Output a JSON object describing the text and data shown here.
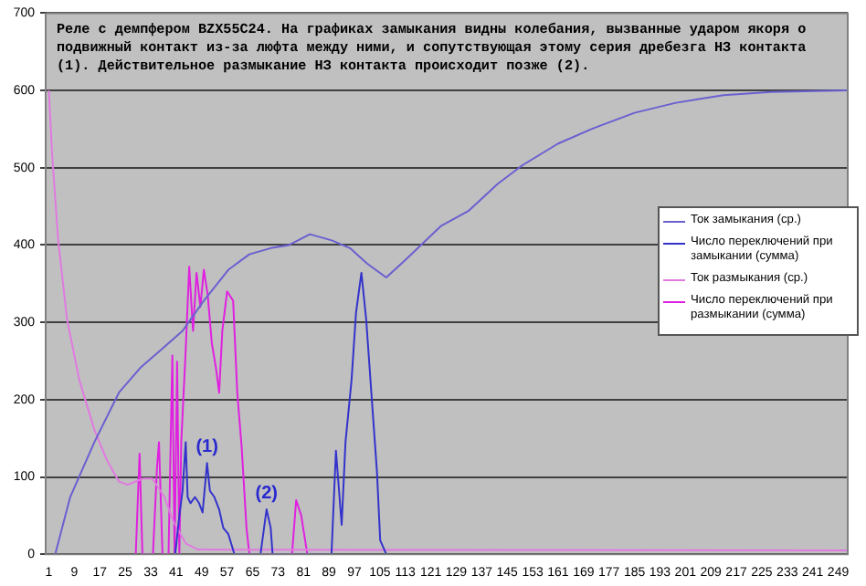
{
  "chart_data": {
    "type": "line",
    "title": "Реле с демпфером BZX55C24. На графиках замыкания видны колебания, вызванные ударом якоря о подвижный контакт из-за люфта между ними, и сопутствующая этому серия дребезга НЗ контакта (1). Действительное размыкание НЗ контакта происходит позже (2).",
    "xlim": [
      0,
      252
    ],
    "xticks": [
      1,
      9,
      17,
      25,
      33,
      41,
      49,
      57,
      65,
      73,
      81,
      89,
      97,
      105,
      113,
      121,
      129,
      137,
      145,
      153,
      161,
      169,
      177,
      185,
      193,
      201,
      209,
      217,
      225,
      233,
      241,
      249
    ],
    "ylim": [
      0,
      700
    ],
    "yticks": [
      0,
      100,
      200,
      300,
      400,
      500,
      600,
      700
    ],
    "grid": "y",
    "legend": "right",
    "marker": "none",
    "line_style": "solid",
    "series": [
      {
        "name": "Ток замыкания (ср.)",
        "color": "#6a5fd0",
        "x": [
          3,
          7.7,
          15.3,
          23,
          29.7,
          36.4,
          43,
          49.7,
          57.4,
          64,
          70.7,
          76.5,
          83,
          89.9,
          95.6,
          101,
          107,
          112.8,
          124.3,
          132.8,
          142,
          149.7,
          160.9,
          172,
          185,
          198,
          213,
          228,
          252
        ],
        "values": [
          0,
          74,
          145,
          209,
          241,
          265,
          289,
          328,
          368,
          388,
          396,
          400,
          414,
          406,
          396,
          376,
          358,
          380,
          425,
          444,
          479,
          503,
          531,
          551,
          571,
          584,
          594,
          598,
          600
        ]
      },
      {
        "name": "Число переключений при замыкании (сумма)",
        "color": "#3333cc",
        "x": [
          40.7,
          42,
          43,
          44,
          44.6,
          45.5,
          46.9,
          48.2,
          49.3,
          50.7,
          51.6,
          53,
          54.5,
          55.8,
          57.4,
          59.3,
          67.5,
          69.4,
          70.7,
          71.3,
          89.8,
          91.2,
          93,
          94.2,
          96.1,
          97.5,
          99.2,
          100.7,
          102.6,
          104.1,
          105.1,
          107
        ],
        "values": [
          0,
          50,
          82,
          145,
          74,
          66,
          74,
          66,
          54,
          118,
          82,
          74,
          58,
          34,
          26,
          0,
          0,
          58,
          34,
          0,
          0,
          134,
          38,
          145,
          225,
          312,
          364,
          304,
          193,
          106,
          18,
          0
        ]
      },
      {
        "name": "Ток размыкания (ср.)",
        "color": "#e07ae0",
        "x": [
          1,
          2,
          3.9,
          6.7,
          10.6,
          15.3,
          19.2,
          23,
          25.8,
          30.6,
          33.5,
          37.3,
          40.2,
          44,
          47.8,
          252
        ],
        "values": [
          600,
          519,
          408,
          304,
          225,
          161,
          122,
          94,
          90,
          98,
          98,
          74,
          42,
          14,
          6,
          5
        ]
      },
      {
        "name": "Число переключений при размыкании (сумма)",
        "color": "#e020e0",
        "x": [
          28.3,
          29.5,
          30.4,
          33.7,
          35,
          35.6,
          36.7,
          38.6,
          39.8,
          40.5,
          41.3,
          42,
          42.6,
          44,
          45.1,
          46.3,
          47.4,
          48.6,
          49.7,
          50.9,
          52.2,
          53.5,
          54.5,
          55.5,
          57,
          58.9,
          60.2,
          61.6,
          63.1,
          64,
          77.4,
          78.7,
          80.3,
          82.2
        ],
        "values": [
          0,
          130,
          0,
          0,
          114,
          145,
          0,
          0,
          257,
          0,
          249,
          0,
          145,
          265,
          372,
          289,
          364,
          320,
          368,
          336,
          273,
          241,
          209,
          289,
          340,
          328,
          209,
          137,
          34,
          0,
          0,
          70,
          50,
          0
        ]
      }
    ],
    "annotations": [
      {
        "text": "(1)",
        "x": 50.7,
        "y": 118
      },
      {
        "text": "(2)",
        "x": 69.4,
        "y": 58
      }
    ]
  }
}
